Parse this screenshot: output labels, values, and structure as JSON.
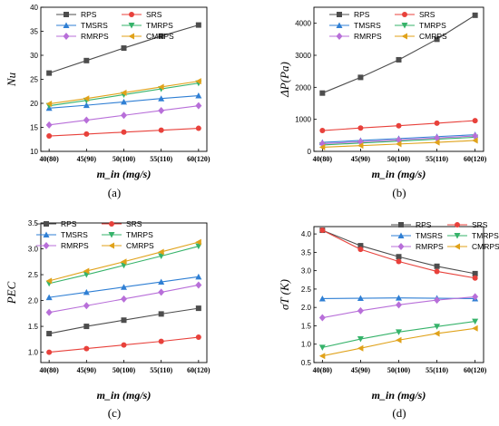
{
  "colors": {
    "RPS": "#4d4d4d",
    "SRS": "#e8413b",
    "TMSRS": "#2f7fd4",
    "TMRPS": "#36b36a",
    "RMRPS": "#b86fd9",
    "CMRPS": "#e0a21a"
  },
  "chart_data": [
    {
      "type": "line",
      "panel_label": "(a)",
      "ylabel": "Nu",
      "xlabel": "m_in (mg/s)",
      "categories": [
        "40(80)",
        "45(90)",
        "50(100)",
        "55(110)",
        "60(120)"
      ],
      "ylim": [
        10,
        40
      ],
      "yticks": [
        10,
        15,
        20,
        25,
        30,
        35,
        40
      ],
      "legend_position": "top-left",
      "series": [
        {
          "name": "RPS",
          "marker": "square",
          "values": [
            26.3,
            28.9,
            31.5,
            34.0,
            36.3
          ]
        },
        {
          "name": "SRS",
          "marker": "circle",
          "values": [
            13.2,
            13.6,
            14.0,
            14.4,
            14.8
          ]
        },
        {
          "name": "TMSRS",
          "marker": "triangle-up",
          "values": [
            19.0,
            19.6,
            20.3,
            21.0,
            21.6
          ]
        },
        {
          "name": "TMRPS",
          "marker": "triangle-down",
          "values": [
            19.5,
            20.6,
            21.8,
            23.0,
            24.2
          ]
        },
        {
          "name": "RMRPS",
          "marker": "diamond",
          "values": [
            15.5,
            16.5,
            17.5,
            18.5,
            19.5
          ]
        },
        {
          "name": "CMRPS",
          "marker": "triangle-left",
          "values": [
            19.9,
            21.0,
            22.2,
            23.4,
            24.6
          ]
        }
      ]
    },
    {
      "type": "line",
      "panel_label": "(b)",
      "ylabel": "ΔP(Pa)",
      "xlabel": "m_in (mg/s)",
      "categories": [
        "40(80)",
        "45(90)",
        "50(100)",
        "55(110)",
        "60(120)"
      ],
      "ylim": [
        0,
        4500
      ],
      "yticks": [
        0,
        1000,
        2000,
        3000,
        4000
      ],
      "legend_position": "top-left",
      "series": [
        {
          "name": "RPS",
          "marker": "square",
          "values": [
            1820,
            2310,
            2860,
            3500,
            4250
          ]
        },
        {
          "name": "SRS",
          "marker": "circle",
          "values": [
            650,
            730,
            800,
            880,
            960
          ]
        },
        {
          "name": "TMSRS",
          "marker": "triangle-up",
          "values": [
            280,
            340,
            400,
            460,
            520
          ]
        },
        {
          "name": "TMRPS",
          "marker": "triangle-down",
          "values": [
            200,
            260,
            320,
            380,
            440
          ]
        },
        {
          "name": "RMRPS",
          "marker": "diamond",
          "values": [
            240,
            300,
            360,
            420,
            480
          ]
        },
        {
          "name": "CMRPS",
          "marker": "triangle-left",
          "values": [
            130,
            180,
            230,
            280,
            340
          ]
        }
      ]
    },
    {
      "type": "line",
      "panel_label": "(c)",
      "ylabel": "PEC",
      "xlabel": "m_in (mg/s)",
      "categories": [
        "40(80)",
        "45(90)",
        "50(100)",
        "55(110)",
        "60(120)"
      ],
      "ylim": [
        0.8,
        3.5
      ],
      "yticks": [
        1.0,
        1.5,
        2.0,
        2.5,
        3.0,
        3.5
      ],
      "legend_position": "top-left",
      "series": [
        {
          "name": "RPS",
          "marker": "square",
          "values": [
            1.36,
            1.5,
            1.62,
            1.74,
            1.85
          ]
        },
        {
          "name": "SRS",
          "marker": "circle",
          "values": [
            1.0,
            1.07,
            1.14,
            1.21,
            1.29
          ]
        },
        {
          "name": "TMSRS",
          "marker": "triangle-up",
          "values": [
            2.06,
            2.16,
            2.26,
            2.36,
            2.46
          ]
        },
        {
          "name": "TMRPS",
          "marker": "triangle-down",
          "values": [
            2.33,
            2.5,
            2.68,
            2.86,
            3.05
          ]
        },
        {
          "name": "RMRPS",
          "marker": "diamond",
          "values": [
            1.77,
            1.9,
            2.03,
            2.16,
            2.3
          ]
        },
        {
          "name": "CMRPS",
          "marker": "triangle-left",
          "values": [
            2.38,
            2.57,
            2.75,
            2.94,
            3.13
          ]
        }
      ]
    },
    {
      "type": "line",
      "panel_label": "(d)",
      "ylabel": "σT (K)",
      "xlabel": "m_in (mg/s)",
      "categories": [
        "40(80)",
        "45(90)",
        "50(100)",
        "55(110)",
        "60(120)"
      ],
      "ylim": [
        0.5,
        4.2
      ],
      "yticks": [
        0.5,
        1.0,
        1.5,
        2.0,
        2.5,
        3.0,
        3.5,
        4.0
      ],
      "legend_position": "top-right",
      "series": [
        {
          "name": "RPS",
          "marker": "square",
          "values": [
            4.1,
            3.68,
            3.38,
            3.12,
            2.92
          ]
        },
        {
          "name": "SRS",
          "marker": "circle",
          "values": [
            4.1,
            3.58,
            3.25,
            2.98,
            2.8
          ]
        },
        {
          "name": "TMSRS",
          "marker": "triangle-up",
          "values": [
            2.24,
            2.25,
            2.26,
            2.25,
            2.24
          ]
        },
        {
          "name": "TMRPS",
          "marker": "triangle-down",
          "values": [
            0.91,
            1.14,
            1.33,
            1.48,
            1.62
          ]
        },
        {
          "name": "RMRPS",
          "marker": "diamond",
          "values": [
            1.72,
            1.91,
            2.07,
            2.2,
            2.29
          ]
        },
        {
          "name": "CMRPS",
          "marker": "triangle-left",
          "values": [
            0.68,
            0.89,
            1.11,
            1.29,
            1.43
          ]
        }
      ]
    }
  ]
}
